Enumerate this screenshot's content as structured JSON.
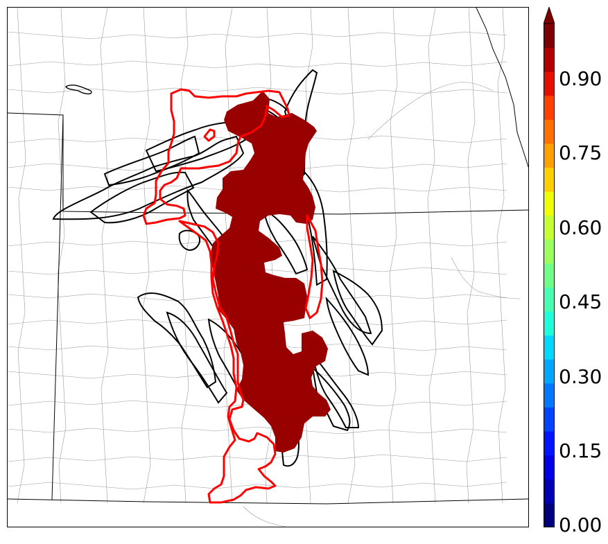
{
  "map": {
    "colorbar": {
      "tick_labels": [
        "0.00",
        "0.15",
        "0.30",
        "0.45",
        "0.60",
        "0.75",
        "0.90"
      ],
      "colors": [
        "#00007f",
        "#0000b2",
        "#0000e5",
        "#0014ff",
        "#0044ff",
        "#0078ff",
        "#00a8ff",
        "#00d8ff",
        "#1cffda",
        "#46ffb0",
        "#70ff86",
        "#9aff5c",
        "#c4ff32",
        "#eeff08",
        "#ffd000",
        "#ffa000",
        "#ff7000",
        "#ff4000",
        "#e51000",
        "#b20000",
        "#7f0000"
      ],
      "extend": "max"
    },
    "colors": {
      "probability_fill": "#990000",
      "observed_outline": "#ff0000",
      "ensemble_outline": "#000000",
      "state_border": "#000000",
      "county_border": "#999999"
    }
  }
}
